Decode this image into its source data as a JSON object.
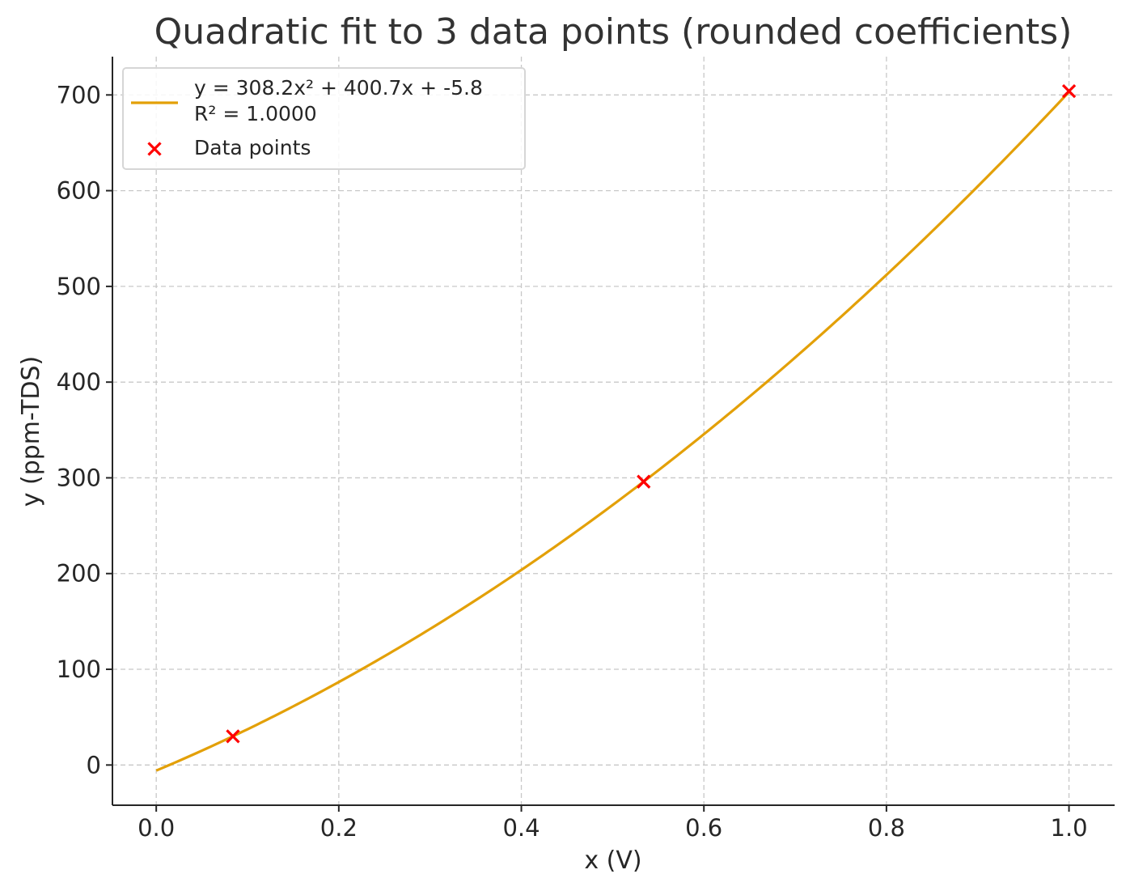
{
  "chart_data": {
    "type": "line",
    "title": "Quadratic fit to 3 data points (rounded coefficients)",
    "xlabel": "x (V)",
    "ylabel": "y (ppm-TDS)",
    "xlim": [
      -0.048,
      1.05
    ],
    "ylim": [
      -42,
      740
    ],
    "xticks": [
      0.0,
      0.2,
      0.4,
      0.6,
      0.8,
      1.0
    ],
    "xtick_labels": [
      "0.0",
      "0.2",
      "0.4",
      "0.6",
      "0.8",
      "1.0"
    ],
    "yticks": [
      0,
      100,
      200,
      300,
      400,
      500,
      600,
      700
    ],
    "ytick_labels": [
      "0",
      "100",
      "200",
      "300",
      "400",
      "500",
      "600",
      "700"
    ],
    "grid": true,
    "legend_position": "top-left",
    "fit": {
      "name_lines": [
        "y = 308.2x² + 400.7x + -5.8",
        "R² = 1.0000"
      ],
      "coefficients": {
        "a": 308.2,
        "b": 400.7,
        "c": -5.8
      },
      "x_range": [
        0.0,
        1.0
      ],
      "color": "#E3A008"
    },
    "points": {
      "name": "Data points",
      "x": [
        0.084,
        0.534,
        1.0
      ],
      "y": [
        30,
        296,
        704
      ],
      "color": "#FF0000"
    }
  }
}
